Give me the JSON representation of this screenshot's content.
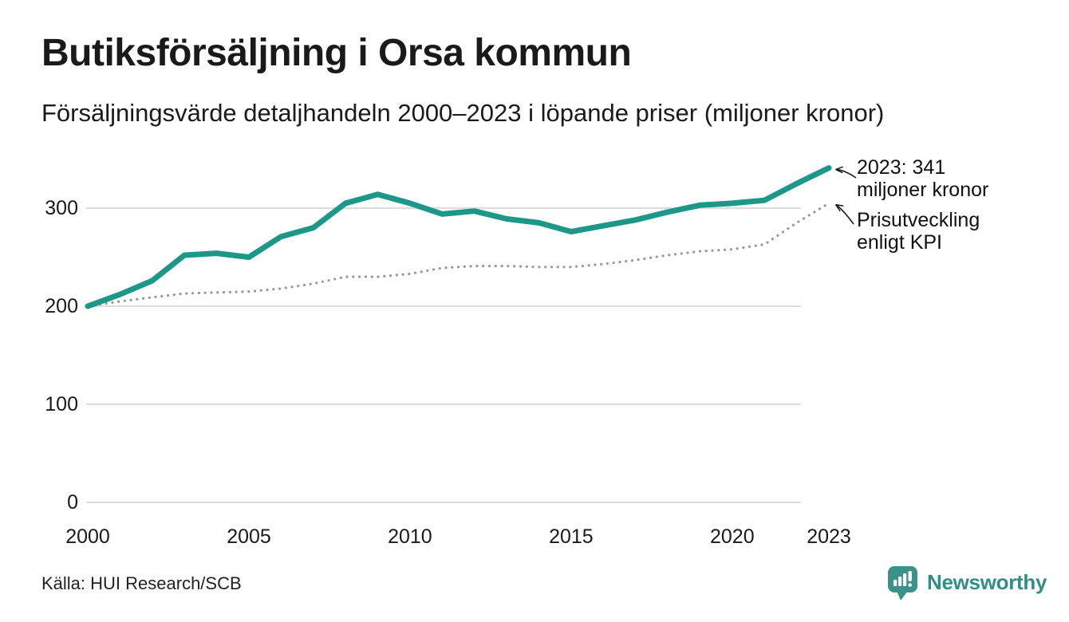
{
  "header": {
    "title": "Butiksförsäljning i Orsa kommun",
    "subtitle": "Försäljningsvärde detaljhandeln 2000–2023 i löpande priser (miljoner kronor)"
  },
  "annotations": {
    "value_line1": "2023: 341",
    "value_line2": "miljoner kronor",
    "kpi_line1": "Prisutveckling",
    "kpi_line2": "enligt KPI"
  },
  "footer": {
    "source": "Källa: HUI Research/SCB",
    "brand": "Newsworthy"
  },
  "colors": {
    "accent": "#1d9888",
    "kpi_dotted": "#999999",
    "grid": "#dcdcdc",
    "axis_text": "#1a1a1a",
    "arrow": "#1a1a1a",
    "logo_bubble": "#3c918a",
    "brand_text": "#2f8e85"
  },
  "chart_data": {
    "type": "line",
    "title": "Butiksförsäljning i Orsa kommun",
    "subtitle": "Försäljningsvärde detaljhandeln 2000–2023 i löpande priser (miljoner kronor)",
    "xlabel": "",
    "ylabel": "",
    "x": [
      2000,
      2001,
      2002,
      2003,
      2004,
      2005,
      2006,
      2007,
      2008,
      2009,
      2010,
      2011,
      2012,
      2013,
      2014,
      2015,
      2016,
      2017,
      2018,
      2019,
      2020,
      2021,
      2022,
      2023
    ],
    "xticks": [
      2000,
      2005,
      2010,
      2015,
      2020,
      2023
    ],
    "yticks": [
      0,
      100,
      200,
      300
    ],
    "ylim": [
      0,
      360
    ],
    "grid": "horizontal",
    "legend": "annotated-at-line-ends",
    "series": [
      {
        "name": "Försäljningsvärde i löpande priser",
        "style": "solid",
        "values": [
          200,
          212,
          226,
          252,
          254,
          250,
          271,
          280,
          305,
          314,
          305,
          294,
          297,
          289,
          285,
          276,
          282,
          288,
          296,
          303,
          305,
          308,
          325,
          341
        ]
      },
      {
        "name": "Prisutveckling enligt KPI",
        "style": "dotted",
        "values": [
          200,
          205,
          209,
          213,
          214,
          215,
          218,
          223,
          230,
          230,
          233,
          239,
          241,
          241,
          240,
          240,
          243,
          247,
          252,
          256,
          258,
          263,
          285,
          305
        ]
      }
    ],
    "end_labels": [
      "2023: 341 miljoner kronor",
      "Prisutveckling enligt KPI"
    ]
  }
}
